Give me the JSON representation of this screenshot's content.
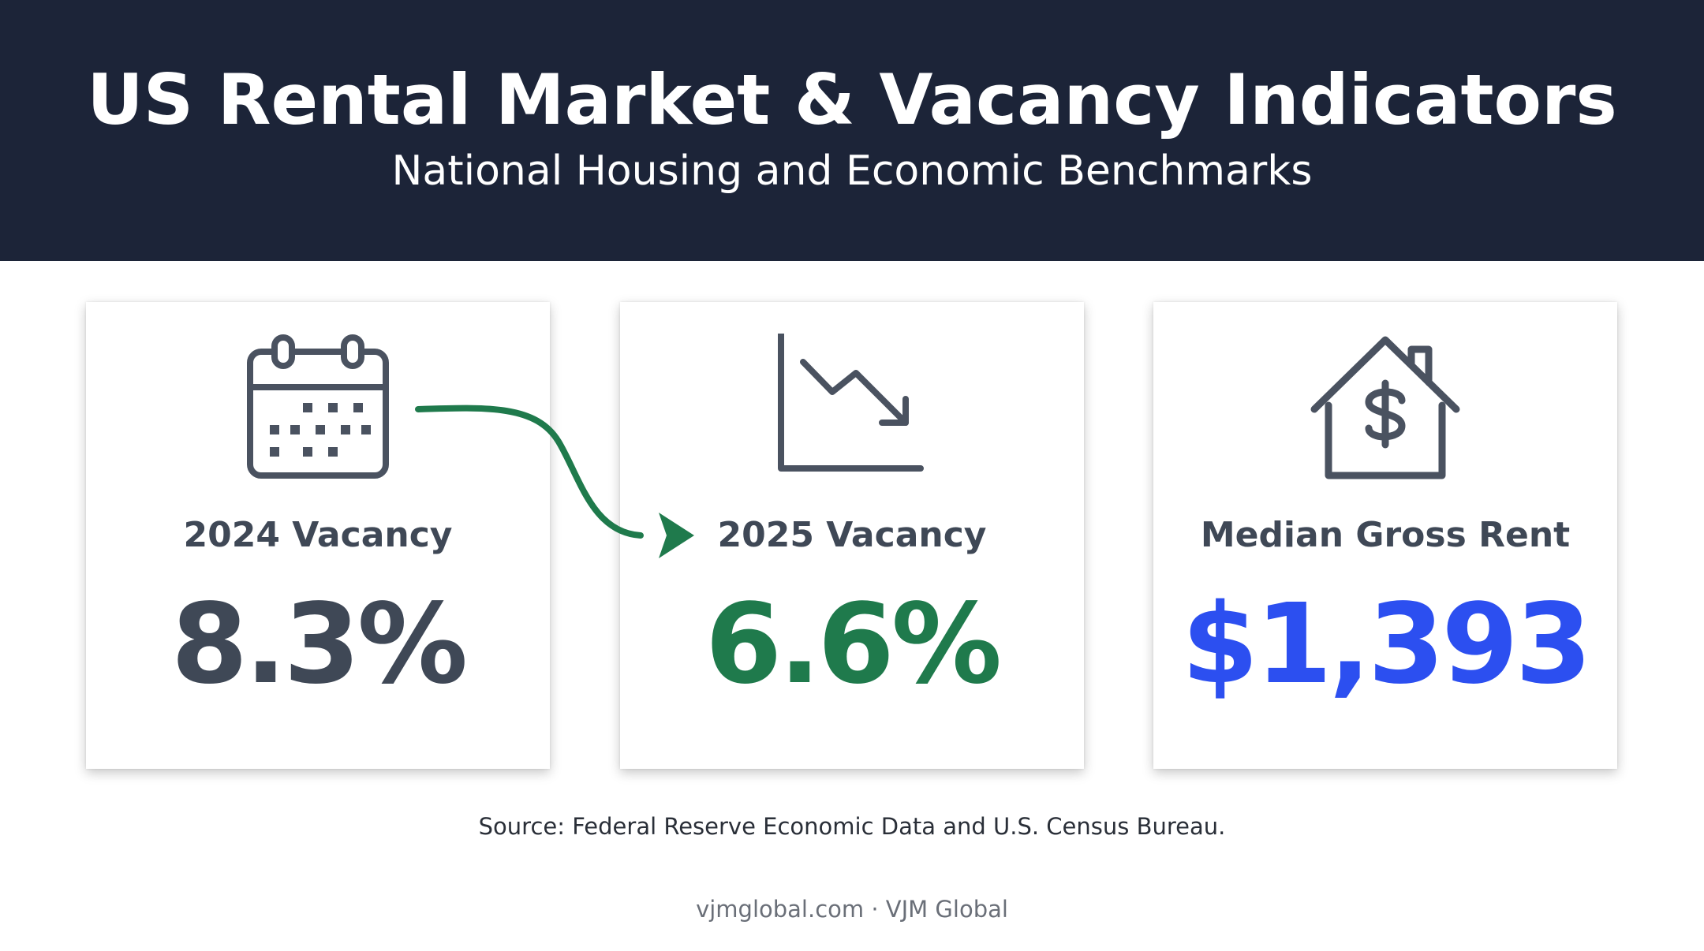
{
  "header": {
    "title": "US Rental Market & Vacancy Indicators",
    "subtitle": "National Housing and Economic Benchmarks"
  },
  "cards": [
    {
      "label": "2024 Vacancy",
      "value": "8.3%",
      "icon": "calendar-icon",
      "value_color": "#3f4856"
    },
    {
      "label": "2025 Vacancy",
      "value": "6.6%",
      "icon": "trend-down-chart-icon",
      "value_color": "#1f7a4c"
    },
    {
      "label": "Median Gross Rent",
      "value": "$1,393",
      "icon": "house-dollar-icon",
      "value_color": "#2c4ff0"
    }
  ],
  "connector": {
    "icon": "curved-arrow-icon",
    "color": "#1f7a4c"
  },
  "source": "Source: Federal Reserve Economic Data and U.S. Census Bureau.",
  "footer": "vjmglobal.com · VJM Global",
  "colors": {
    "header_bg": "#1c2438",
    "icon_stroke": "#4a5260"
  }
}
